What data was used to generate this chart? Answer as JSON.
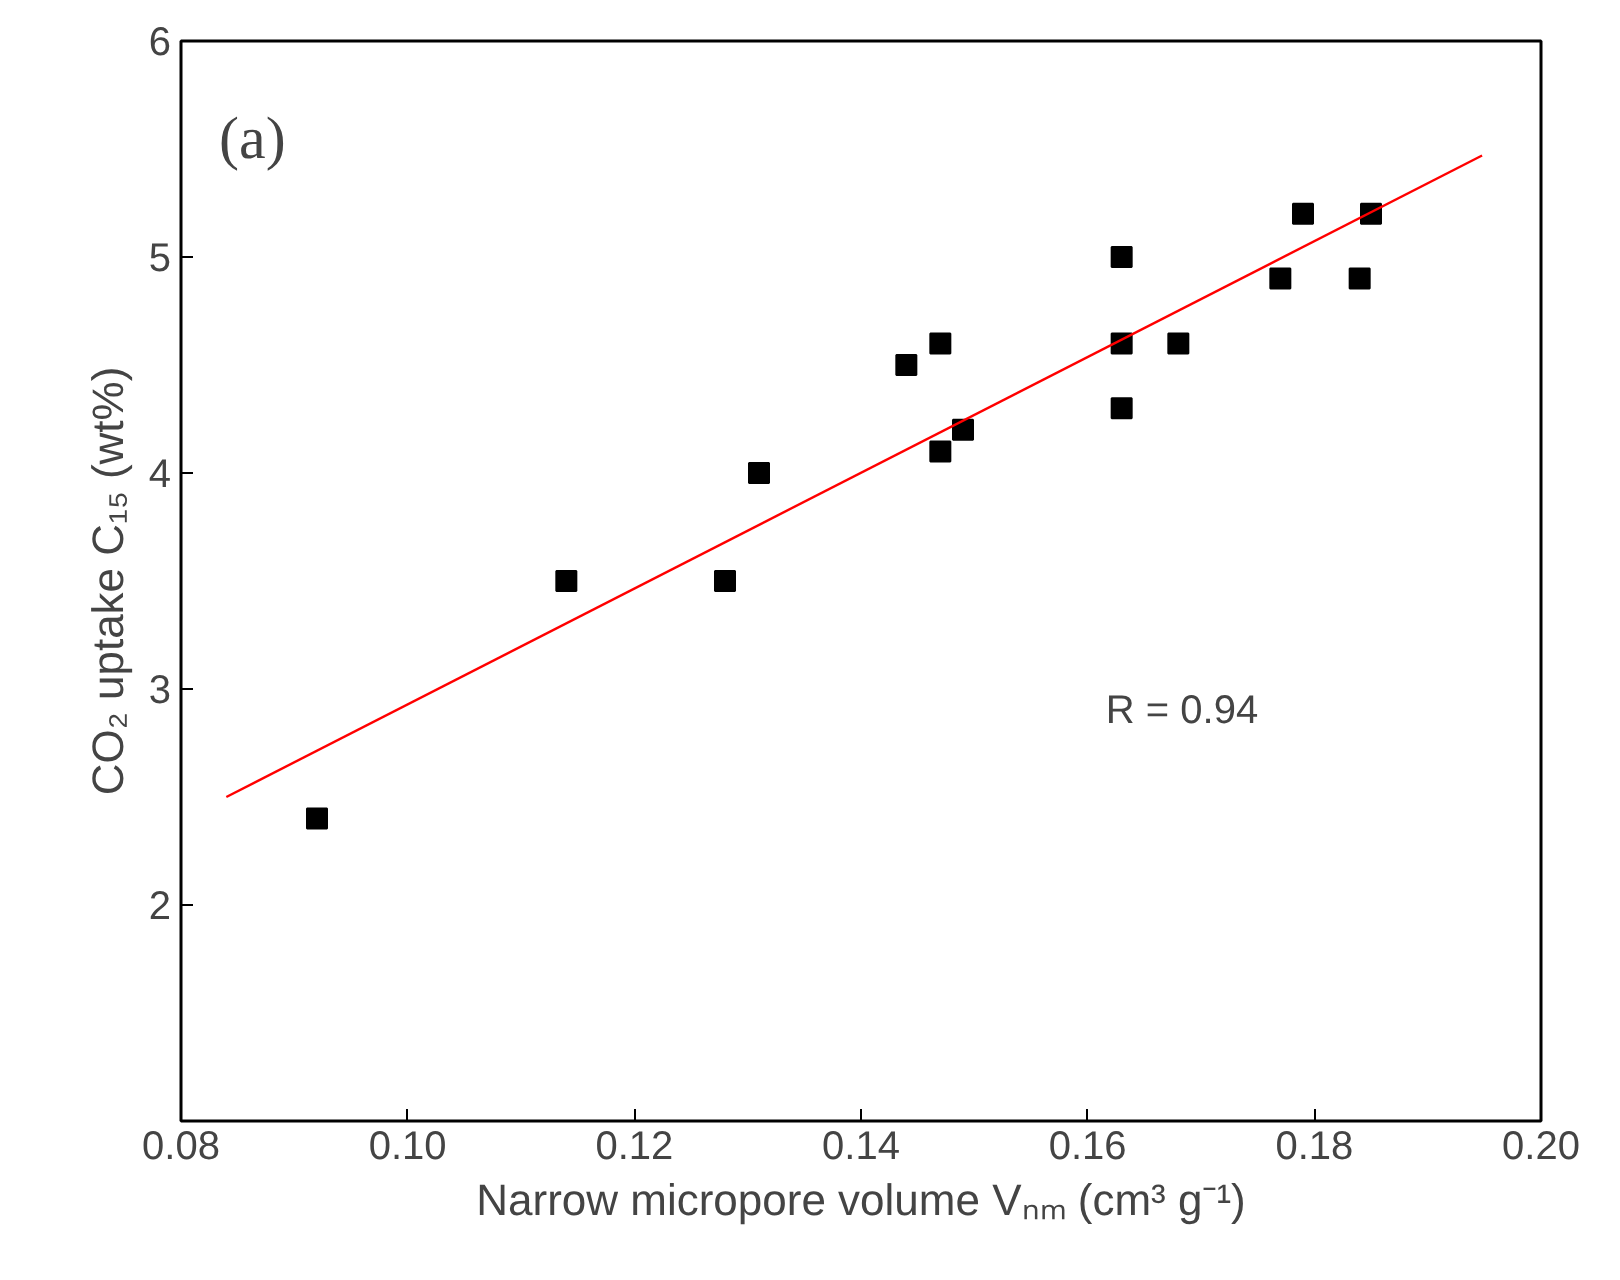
{
  "chart_data": {
    "type": "scatter",
    "xlabel": "Narrow micropore volume Vₙₘ (cm³ g⁻¹)",
    "ylabel": "CO₂ uptake C₁₅ (wt%)",
    "annotations": [
      "(a)",
      "R = 0.94"
    ],
    "x": [
      0.092,
      0.114,
      0.128,
      0.131,
      0.144,
      0.147,
      0.147,
      0.149,
      0.163,
      0.163,
      0.163,
      0.168,
      0.177,
      0.179,
      0.184,
      0.185
    ],
    "series": [
      {
        "color": "#000000",
        "marker": "square",
        "values": [
          2.4,
          3.5,
          3.5,
          4.0,
          4.5,
          4.6,
          4.1,
          4.2,
          5.0,
          4.6,
          4.3,
          4.6,
          4.9,
          5.2,
          4.9,
          5.2
        ]
      },
      {
        "type": "line",
        "color": "#ff0000",
        "line_style": "solid",
        "marker": "none",
        "x": [
          0.084,
          0.1948
        ],
        "values": [
          2.5,
          5.47
        ]
      }
    ],
    "xlim": [
      0.08,
      0.2
    ],
    "ylim": [
      1,
      6
    ],
    "xticks": [
      {
        "value": 0.08,
        "label": "0.08"
      },
      {
        "value": 0.1,
        "label": "0.10"
      },
      {
        "value": 0.12,
        "label": "0.12"
      },
      {
        "value": 0.14,
        "label": "0.14"
      },
      {
        "value": 0.16,
        "label": "0.16"
      },
      {
        "value": 0.18,
        "label": "0.18"
      },
      {
        "value": 0.2,
        "label": "0.20"
      }
    ],
    "yticks": [
      2,
      3,
      4,
      5,
      6
    ],
    "grid": false
  }
}
